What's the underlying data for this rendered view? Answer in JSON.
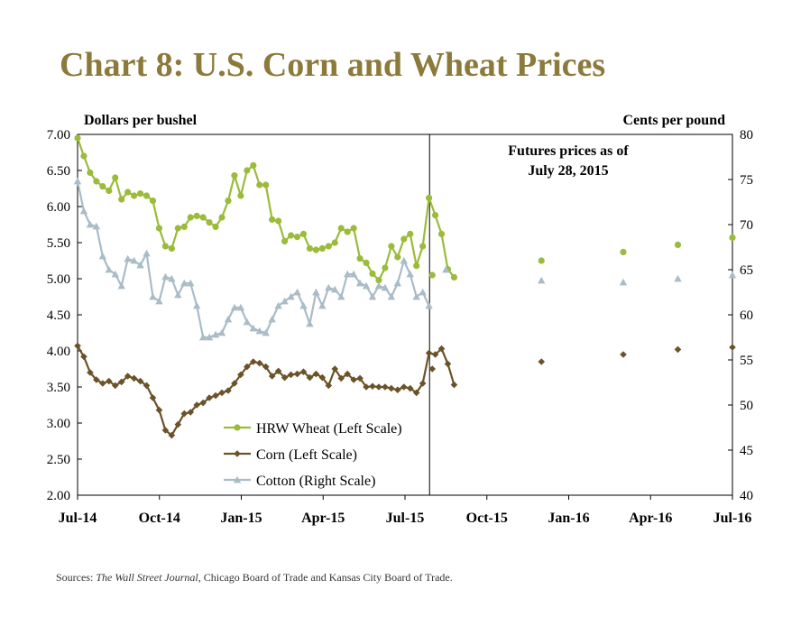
{
  "title": "Chart 8: U.S. Corn and Wheat Prices",
  "source": {
    "prefix": "Sources: ",
    "italic": "The Wall Street Journal",
    "rest": ", Chicago Board of Trade and Kansas City Board of Trade."
  },
  "colors": {
    "wheat": "#9bbb3b",
    "corn": "#6b5228",
    "cotton": "#a9bcc8",
    "title": "#8b7a3a"
  },
  "chart_data": {
    "type": "line",
    "left_axis_label": "Dollars per bushel",
    "right_axis_label": "Cents per pound",
    "annotation_lines": [
      "Futures prices as of",
      "July 28, 2015"
    ],
    "left_ylim": [
      2.0,
      7.0
    ],
    "left_ticks": [
      "2.00",
      "2.50",
      "3.00",
      "3.50",
      "4.00",
      "4.50",
      "5.00",
      "5.50",
      "6.00",
      "6.50",
      "7.00"
    ],
    "right_ylim": [
      40,
      80
    ],
    "right_ticks": [
      "40",
      "45",
      "50",
      "55",
      "60",
      "65",
      "70",
      "75",
      "80"
    ],
    "x_range_months": [
      0,
      24
    ],
    "x_ticks": [
      {
        "label": "Jul-14",
        "m": 0
      },
      {
        "label": "Oct-14",
        "m": 3
      },
      {
        "label": "Jan-15",
        "m": 6
      },
      {
        "label": "Apr-15",
        "m": 9
      },
      {
        "label": "Jul-15",
        "m": 12
      },
      {
        "label": "Oct-15",
        "m": 15
      },
      {
        "label": "Jan-16",
        "m": 18
      },
      {
        "label": "Apr-16",
        "m": 21
      },
      {
        "label": "Jul-16",
        "m": 24
      }
    ],
    "divider_month": 12.9,
    "series": [
      {
        "name": "HRW Wheat (Left Scale)",
        "axis": "left",
        "marker": "circle",
        "weekly_start_month": 0.0,
        "weekly_step_month": 0.23,
        "values": [
          6.95,
          6.7,
          6.47,
          6.35,
          6.28,
          6.22,
          6.4,
          6.1,
          6.2,
          6.15,
          6.18,
          6.15,
          6.08,
          5.7,
          5.45,
          5.42,
          5.7,
          5.72,
          5.85,
          5.87,
          5.85,
          5.78,
          5.72,
          5.85,
          6.08,
          6.43,
          6.15,
          6.5,
          6.57,
          6.3,
          6.3,
          5.82,
          5.8,
          5.52,
          5.6,
          5.58,
          5.62,
          5.42,
          5.4,
          5.42,
          5.45,
          5.5,
          5.7,
          5.65,
          5.7,
          5.28,
          5.22,
          5.07,
          4.98,
          5.15,
          5.45,
          5.3,
          5.55,
          5.62,
          5.18,
          5.45,
          6.12,
          5.88,
          5.62,
          5.13,
          5.02
        ],
        "futures": [
          {
            "m": 13.0,
            "v": 5.05
          },
          {
            "m": 17.0,
            "v": 5.25
          },
          {
            "m": 20.0,
            "v": 5.37
          },
          {
            "m": 22.0,
            "v": 5.47
          },
          {
            "m": 24.0,
            "v": 5.57
          }
        ]
      },
      {
        "name": "Corn (Left Scale)",
        "axis": "left",
        "marker": "diamond",
        "weekly_start_month": 0.0,
        "weekly_step_month": 0.23,
        "values": [
          4.07,
          3.92,
          3.7,
          3.6,
          3.55,
          3.58,
          3.52,
          3.57,
          3.65,
          3.62,
          3.58,
          3.52,
          3.35,
          3.18,
          2.9,
          2.83,
          2.98,
          3.13,
          3.15,
          3.25,
          3.28,
          3.35,
          3.38,
          3.42,
          3.45,
          3.55,
          3.67,
          3.78,
          3.85,
          3.83,
          3.78,
          3.65,
          3.72,
          3.63,
          3.67,
          3.68,
          3.71,
          3.63,
          3.68,
          3.63,
          3.52,
          3.75,
          3.62,
          3.68,
          3.6,
          3.62,
          3.5,
          3.51,
          3.5,
          3.5,
          3.48,
          3.46,
          3.5,
          3.48,
          3.42,
          3.55,
          3.97,
          3.95,
          4.03,
          3.82,
          3.53
        ],
        "futures": [
          {
            "m": 13.0,
            "v": 3.75
          },
          {
            "m": 17.0,
            "v": 3.85
          },
          {
            "m": 20.0,
            "v": 3.95
          },
          {
            "m": 22.0,
            "v": 4.02
          },
          {
            "m": 24.0,
            "v": 4.05
          }
        ]
      },
      {
        "name": "Cotton (Right Scale)",
        "axis": "right",
        "marker": "triangle",
        "weekly_start_month": 0.0,
        "weekly_step_month": 0.23,
        "values": [
          74.8,
          71.5,
          70.0,
          69.8,
          66.5,
          65.0,
          64.5,
          63.2,
          66.2,
          66.0,
          65.5,
          66.8,
          62.0,
          61.5,
          64.2,
          64.0,
          62.2,
          63.5,
          63.5,
          61.0,
          57.5,
          57.5,
          57.8,
          58.0,
          59.5,
          60.8,
          60.8,
          59.2,
          58.5,
          58.2,
          58.0,
          59.5,
          61.0,
          61.5,
          62.0,
          62.5,
          61.0,
          59.0,
          62.5,
          61.0,
          63.0,
          62.8,
          62.0,
          64.5,
          64.5,
          63.5,
          63.2,
          62.0,
          63.2,
          63.0,
          62.0,
          63.5,
          66.0,
          64.5,
          62.0,
          62.5,
          61.0
        ],
        "futures": [
          {
            "m": 13.5,
            "v": 65.0
          },
          {
            "m": 17.0,
            "v": 63.8
          },
          {
            "m": 20.0,
            "v": 63.6
          },
          {
            "m": 22.0,
            "v": 64.0
          },
          {
            "m": 24.0,
            "v": 64.4
          }
        ]
      }
    ]
  }
}
